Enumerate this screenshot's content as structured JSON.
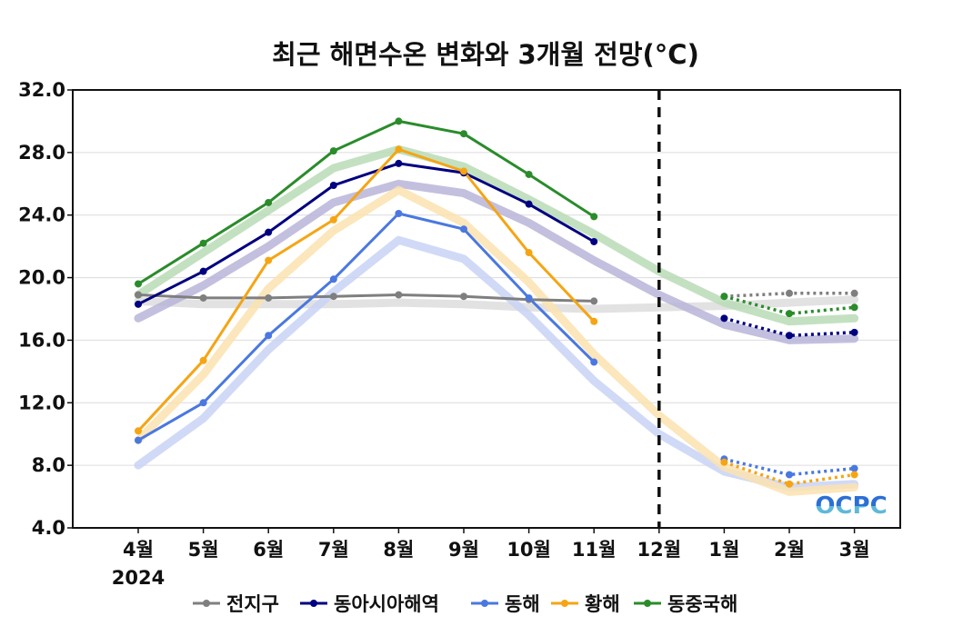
{
  "chart_data": {
    "type": "line",
    "title": "최근 해면수온 변화와 3개월 전망(°C)",
    "xlabel": "",
    "ylabel": "",
    "categories": [
      "4월",
      "5월",
      "6월",
      "7월",
      "8월",
      "9월",
      "10월",
      "11월",
      "12월",
      "1월",
      "2월",
      "3월"
    ],
    "year_label": "2024",
    "ylim": [
      4.0,
      32.0
    ],
    "yticks": [
      "4.0",
      "8.0",
      "12.0",
      "16.0",
      "20.0",
      "24.0",
      "28.0",
      "32.0"
    ],
    "grid": true,
    "forecast_divider_after": "11월",
    "legend_position": "bottom",
    "series": [
      {
        "name": "전지구",
        "color": "#7f7f7f",
        "normal_color": "#dddddd",
        "observed": [
          18.9,
          18.7,
          18.7,
          18.8,
          18.9,
          18.8,
          18.6,
          18.5,
          null,
          null,
          null,
          null
        ],
        "forecast": [
          null,
          null,
          null,
          null,
          null,
          null,
          null,
          null,
          null,
          18.8,
          19.0,
          19.0
        ],
        "normal": [
          18.5,
          18.3,
          18.3,
          18.3,
          18.4,
          18.3,
          18.1,
          18.0,
          18.1,
          18.2,
          18.4,
          18.6
        ]
      },
      {
        "name": "동아시아해역",
        "color": "#000080",
        "normal_color": "#b8b4d8",
        "observed": [
          18.3,
          20.4,
          22.9,
          25.9,
          27.3,
          26.7,
          24.7,
          22.3,
          null,
          null,
          null,
          null
        ],
        "forecast": [
          null,
          null,
          null,
          null,
          null,
          null,
          null,
          null,
          null,
          17.4,
          16.3,
          16.5
        ],
        "normal": [
          17.4,
          19.5,
          22.0,
          24.8,
          26.0,
          25.4,
          23.5,
          21.1,
          18.9,
          17.0,
          16.0,
          16.1
        ]
      },
      {
        "name": "동해",
        "color": "#4a78e0",
        "normal_color": "#c8d4f6",
        "observed": [
          9.6,
          12.0,
          16.3,
          19.9,
          24.1,
          23.1,
          18.7,
          14.6,
          null,
          null,
          null,
          null
        ],
        "forecast": [
          null,
          null,
          null,
          null,
          null,
          null,
          null,
          null,
          null,
          8.4,
          7.4,
          7.8
        ],
        "normal": [
          8.0,
          11.0,
          15.4,
          19.1,
          22.4,
          21.2,
          17.6,
          13.4,
          10.0,
          7.6,
          6.6,
          6.8
        ]
      },
      {
        "name": "황해",
        "color": "#f5a514",
        "normal_color": "#fbe2b0",
        "observed": [
          10.2,
          14.7,
          21.1,
          23.7,
          28.2,
          26.8,
          21.6,
          17.2,
          null,
          null,
          null,
          null
        ],
        "forecast": [
          null,
          null,
          null,
          null,
          null,
          null,
          null,
          null,
          null,
          8.2,
          6.8,
          7.4
        ],
        "normal": [
          9.6,
          13.8,
          19.3,
          23.0,
          25.6,
          23.5,
          19.7,
          15.1,
          11.2,
          7.9,
          6.3,
          6.6
        ]
      },
      {
        "name": "동중국해",
        "color": "#2a8c2a",
        "normal_color": "#b9dcb6",
        "observed": [
          19.6,
          22.2,
          24.8,
          28.1,
          30.0,
          29.2,
          26.6,
          23.9,
          null,
          null,
          null,
          null
        ],
        "forecast": [
          null,
          null,
          null,
          null,
          null,
          null,
          null,
          null,
          null,
          18.8,
          17.7,
          18.1
        ],
        "normal": [
          18.9,
          21.6,
          24.3,
          27.0,
          28.2,
          27.1,
          25.0,
          22.8,
          20.4,
          18.4,
          17.2,
          17.4
        ]
      }
    ]
  },
  "logo": {
    "text": "OCPC",
    "colors": {
      "top": "#2b6fd6",
      "bottom": "#5fb8d8"
    }
  }
}
